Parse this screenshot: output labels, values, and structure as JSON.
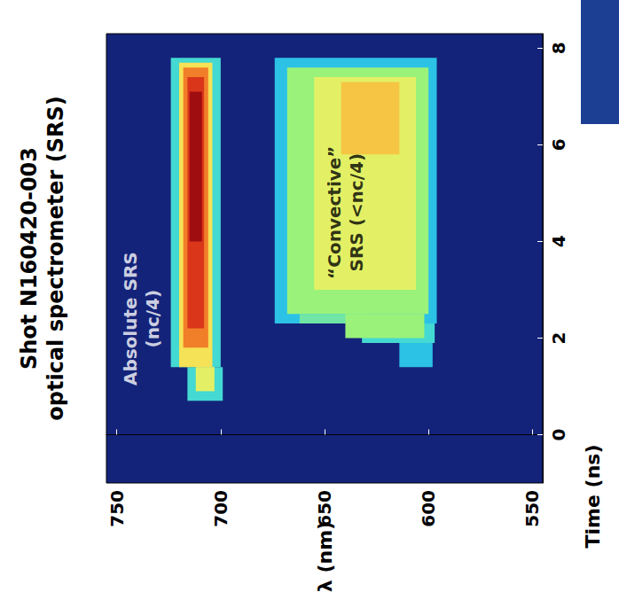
{
  "chart_data": {
    "type": "heatmap",
    "title": "Shot N160420-003\noptical spectrometer (SRS)",
    "xlabel": "λ (nm)",
    "ylabel": "Time (ns)",
    "xlim": [
      755,
      545
    ],
    "xticks": [
      750,
      700,
      650,
      600,
      550
    ],
    "ylim": [
      -1,
      8.3
    ],
    "yticks": [
      0,
      2,
      4,
      6,
      8
    ],
    "grid": false,
    "zlim": [
      0,
      10
    ],
    "cells": [
      [
        598,
        614,
        1.4,
        1.9,
        3.5
      ],
      [
        597,
        632,
        1.9,
        2.3,
        4
      ],
      [
        596,
        674,
        2.3,
        7.8,
        3.5
      ],
      [
        600,
        668,
        2.5,
        7.6,
        5
      ],
      [
        632,
        662,
        2.3,
        2.5,
        4.5
      ],
      [
        602,
        640,
        2.0,
        2.5,
        5
      ],
      [
        606,
        655,
        3.0,
        7.4,
        6
      ],
      [
        614,
        642,
        5.8,
        7.3,
        7
      ],
      [
        699,
        716,
        0.7,
        1.4,
        4
      ],
      [
        700,
        724,
        1.4,
        7.8,
        4
      ],
      [
        703,
        712,
        0.9,
        1.4,
        6
      ],
      [
        704,
        720,
        1.4,
        7.7,
        6.5
      ],
      [
        706,
        718,
        1.8,
        7.6,
        8
      ],
      [
        708,
        716,
        2.2,
        7.4,
        9
      ],
      [
        709,
        715,
        4,
        7.1,
        10
      ]
    ],
    "annotations": [
      {
        "text": "Absolute SRS\n(nc/4)",
        "x": 738,
        "y": 2.4
      },
      {
        "text": "“Convective”\nSRS (<nc/4)",
        "x": 640,
        "y": 4.6
      }
    ]
  }
}
